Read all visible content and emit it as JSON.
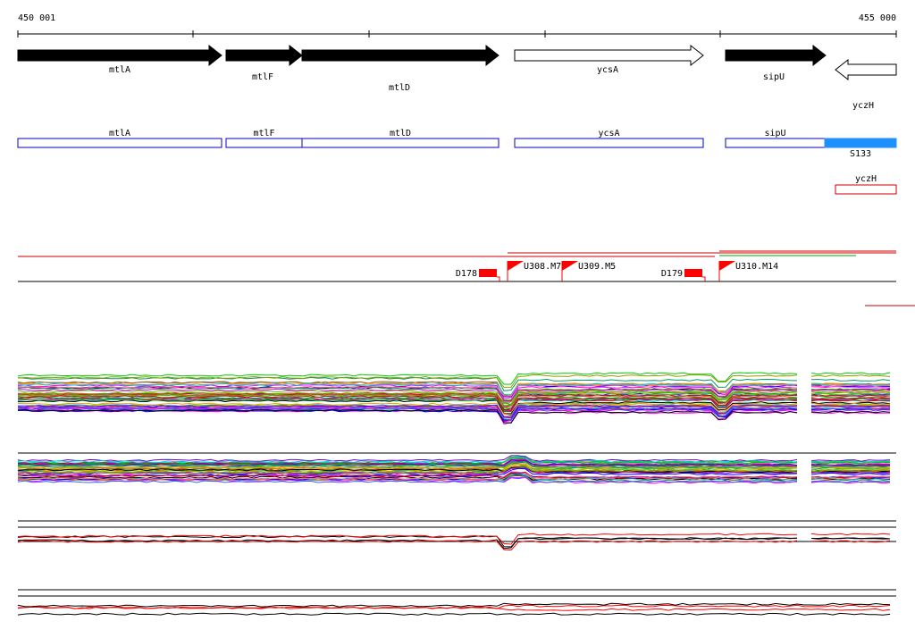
{
  "axis": {
    "start": "450 001",
    "end": "455 000"
  },
  "genes": [
    {
      "label": "mtlA"
    },
    {
      "label": "mtlF"
    },
    {
      "label": "mtlD"
    },
    {
      "label": "ycsA"
    },
    {
      "label": "sipU"
    },
    {
      "label": "yczH"
    }
  ],
  "annotations": [
    {
      "label": "mtlA"
    },
    {
      "label": "mtlF"
    },
    {
      "label": "mtlD"
    },
    {
      "label": "ycsA"
    },
    {
      "label": "sipU"
    },
    {
      "label": "S133"
    },
    {
      "label": "yczH"
    }
  ],
  "markers": [
    {
      "label": "D178"
    },
    {
      "label": "U308.M7"
    },
    {
      "label": "U309.M5"
    },
    {
      "label": "D179"
    },
    {
      "label": "U310.M14"
    }
  ]
}
